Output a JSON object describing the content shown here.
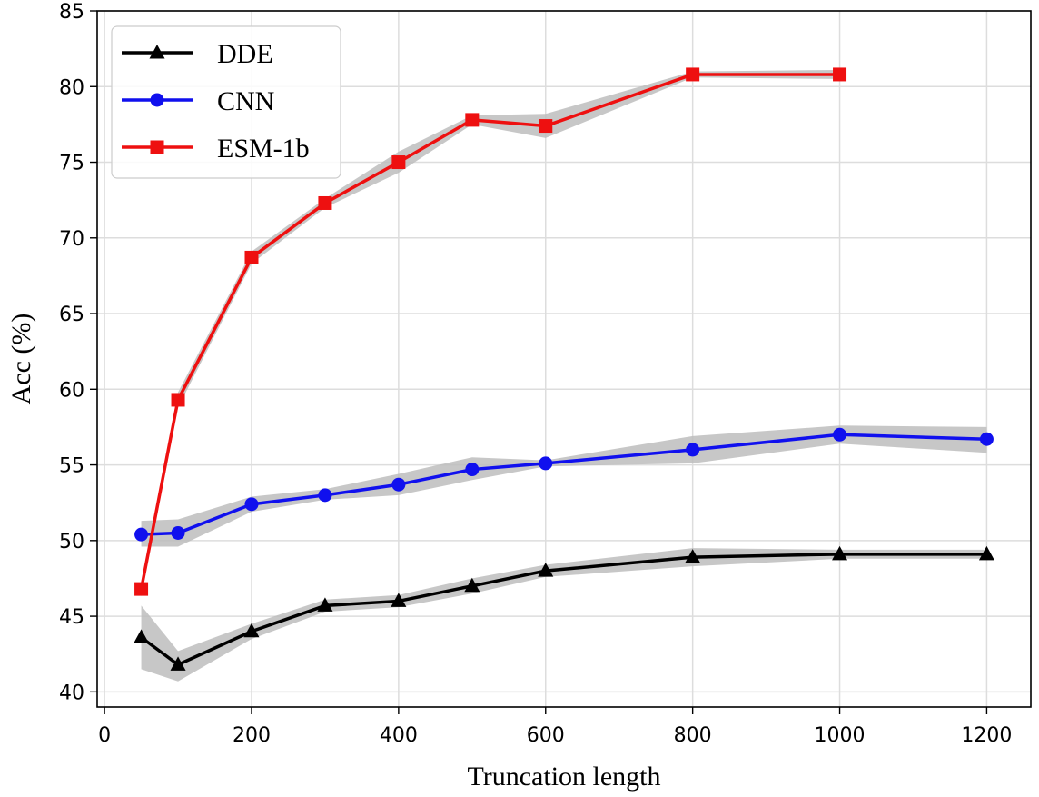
{
  "chart_data": {
    "type": "line",
    "xlabel": "Truncation length",
    "ylabel": "Acc (%)",
    "xlim": [
      -10,
      1260
    ],
    "ylim": [
      39,
      85
    ],
    "xticks": [
      0,
      200,
      400,
      600,
      800,
      1000,
      1200
    ],
    "yticks": [
      40,
      45,
      50,
      55,
      60,
      65,
      70,
      75,
      80,
      85
    ],
    "grid": true,
    "legend_position": "top-left",
    "series": [
      {
        "name": "DDE",
        "color": "#000000",
        "marker": "triangle",
        "x": [
          50,
          100,
          200,
          300,
          400,
          500,
          600,
          800,
          1000,
          1200
        ],
        "values": [
          43.6,
          41.8,
          44.0,
          45.7,
          46.0,
          47.0,
          48.0,
          48.9,
          49.1,
          49.1
        ],
        "band_low": [
          41.5,
          40.7,
          43.5,
          45.3,
          45.6,
          46.5,
          47.6,
          48.3,
          48.8,
          48.8
        ],
        "band_high": [
          45.7,
          42.7,
          44.5,
          46.1,
          46.4,
          47.5,
          48.4,
          49.5,
          49.4,
          49.4
        ]
      },
      {
        "name": "CNN",
        "color": "#1010ee",
        "marker": "circle",
        "x": [
          50,
          100,
          200,
          300,
          400,
          500,
          600,
          800,
          1000,
          1200
        ],
        "values": [
          50.4,
          50.5,
          52.4,
          53.0,
          53.7,
          54.7,
          55.1,
          56.0,
          57.0,
          56.7
        ],
        "band_low": [
          49.6,
          49.6,
          51.9,
          52.7,
          53.0,
          54.0,
          54.9,
          55.1,
          56.4,
          55.8
        ],
        "band_high": [
          51.3,
          51.4,
          52.9,
          53.4,
          54.4,
          55.5,
          55.3,
          56.9,
          57.6,
          57.5
        ]
      },
      {
        "name": "ESM-1b",
        "color": "#ee1010",
        "marker": "square",
        "x": [
          50,
          100,
          200,
          300,
          400,
          500,
          600,
          800,
          1000
        ],
        "values": [
          46.8,
          59.3,
          68.7,
          72.3,
          75.0,
          77.8,
          77.4,
          80.8,
          80.8
        ],
        "band_low": [
          46.3,
          58.8,
          68.3,
          72.0,
          74.3,
          77.5,
          76.6,
          80.6,
          80.5
        ],
        "band_high": [
          47.2,
          59.8,
          69.1,
          72.6,
          75.7,
          78.1,
          78.2,
          81.0,
          81.1
        ]
      }
    ]
  }
}
